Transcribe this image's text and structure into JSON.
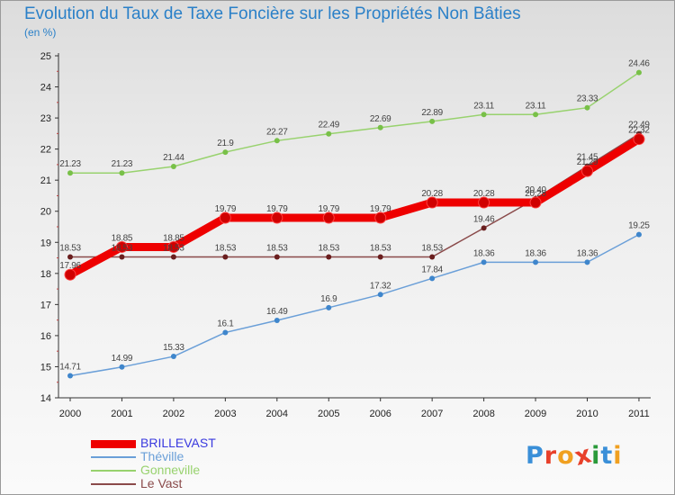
{
  "header": {
    "title": "Evolution du Taux de Taxe Foncière sur les Propriétés Non Bâties",
    "unit": "(en %)"
  },
  "logo": {
    "text": "Proxiti",
    "colors": [
      "#3a8fd8",
      "#e8402a",
      "#f0a020",
      "#e8402a",
      "#2a9a3a",
      "#3a8fd8",
      "#f0a020"
    ]
  },
  "colors": {
    "axis": "#333333",
    "tick_labels": "#222222",
    "value_labels": "#444444",
    "title": "#2a80c8"
  },
  "chart_data": {
    "type": "line",
    "title": "Evolution du Taux de Taxe Foncière sur les Propriétés Non Bâties",
    "ylabel": "(en %)",
    "xlabel": "",
    "ylim": [
      14,
      25
    ],
    "yticks": [
      "14",
      "15",
      "16",
      "17",
      "18",
      "19",
      "20",
      "21",
      "22",
      "23",
      "24",
      "25"
    ],
    "categories": [
      "2000",
      "2001",
      "2002",
      "2003",
      "2004",
      "2005",
      "2006",
      "2007",
      "2008",
      "2009",
      "2010",
      "2011"
    ],
    "grid": false,
    "legend_position": "bottom-left",
    "series": [
      {
        "name": "BRILLEVAST",
        "color": "#ee0000",
        "marker": "#d00000",
        "bold": true,
        "values": [
          17.96,
          18.85,
          18.85,
          19.79,
          19.79,
          19.79,
          19.79,
          20.28,
          20.28,
          20.28,
          21.29,
          22.32
        ],
        "labels": [
          "17.96",
          "18.85",
          "18.85",
          "19.79",
          "19.79",
          "19.79",
          "19.79",
          "20.28",
          "20.28",
          "20.28",
          "21.29",
          "22.32"
        ]
      },
      {
        "name": "Théville",
        "color": "#6a9fd8",
        "marker": "#3f86cc",
        "bold": false,
        "values": [
          14.71,
          14.99,
          15.33,
          16.1,
          16.49,
          16.9,
          17.32,
          17.84,
          18.36,
          18.36,
          18.36,
          19.25
        ],
        "labels": [
          "14.71",
          "14.99",
          "15.33",
          "16.1",
          "16.49",
          "16.9",
          "17.32",
          "17.84",
          "18.36",
          "18.36",
          "18.36",
          "19.25"
        ]
      },
      {
        "name": "Gonneville",
        "color": "#98d26e",
        "marker": "#78c048",
        "bold": false,
        "values": [
          21.23,
          21.23,
          21.44,
          21.9,
          22.27,
          22.49,
          22.69,
          22.89,
          23.11,
          23.11,
          23.33,
          24.46
        ],
        "labels": [
          "21.23",
          "21.23",
          "21.44",
          "21.9",
          "22.27",
          "22.49",
          "22.69",
          "22.89",
          "23.11",
          "23.11",
          "23.33",
          "24.46"
        ]
      },
      {
        "name": "Le Vast",
        "color": "#8a4a4a",
        "marker": "#6a1e1e",
        "bold": false,
        "values": [
          18.53,
          18.53,
          18.53,
          18.53,
          18.53,
          18.53,
          18.53,
          18.53,
          19.46,
          20.4,
          21.45,
          22.49
        ],
        "labels": [
          "18.53",
          "18.53",
          "18.53",
          "18.53",
          "18.53",
          "18.53",
          "18.53",
          "18.53",
          "19.46",
          "20.40",
          "21.45",
          "22.49"
        ]
      }
    ]
  }
}
